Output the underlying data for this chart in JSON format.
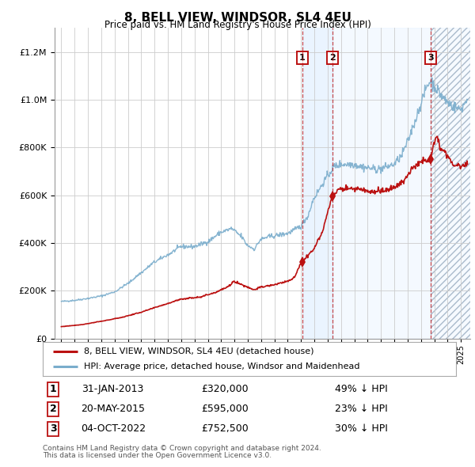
{
  "title": "8, BELL VIEW, WINDSOR, SL4 4EU",
  "subtitle": "Price paid vs. HM Land Registry's House Price Index (HPI)",
  "legend_line1": "8, BELL VIEW, WINDSOR, SL4 4EU (detached house)",
  "legend_line2": "HPI: Average price, detached house, Windsor and Maidenhead",
  "footer1": "Contains HM Land Registry data © Crown copyright and database right 2024.",
  "footer2": "This data is licensed under the Open Government Licence v3.0.",
  "transactions": [
    {
      "num": 1,
      "date": "31-JAN-2013",
      "date_val": 2013.08,
      "price": 320000,
      "hpi_diff": "49% ↓ HPI"
    },
    {
      "num": 2,
      "date": "20-MAY-2015",
      "date_val": 2015.38,
      "price": 595000,
      "hpi_diff": "23% ↓ HPI"
    },
    {
      "num": 3,
      "date": "04-OCT-2022",
      "date_val": 2022.75,
      "price": 752500,
      "hpi_diff": "30% ↓ HPI"
    }
  ],
  "hpi_color": "#7aadcc",
  "price_color": "#bb1111",
  "bg_color": "#ffffff",
  "grid_color": "#cccccc",
  "shade_color": "#ddeeff",
  "ylim": [
    0,
    1300000
  ],
  "xlim_start": 1994.5,
  "xlim_end": 2025.7
}
